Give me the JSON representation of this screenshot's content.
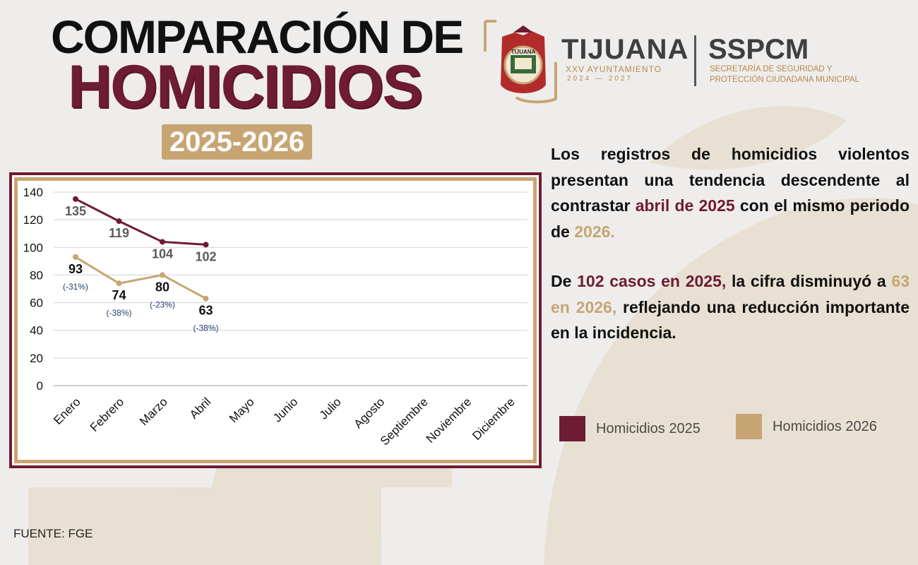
{
  "header": {
    "title_line1": "COMPARACIÓN DE",
    "title_line2": "HOMICIDIOS",
    "years_badge": "2025-2026"
  },
  "logos": {
    "tijuana_name": "TIJUANA",
    "tijuana_sub": "XXV AYUNTAMIENTO",
    "tijuana_years": "2024 — 2027",
    "seal_text": "TIJUANA",
    "sspcm_name": "SSPCM",
    "sspcm_sub": "SECRETARÍA DE SEGURIDAD Y PROTECCIÓN CIUDADANA MUNICIPAL"
  },
  "description": {
    "p1_a": "Los registros de homicidios violentos presentan una tendencia descendente al contrastar ",
    "p1_hl1": "abril de 2025",
    "p1_b": " con el mismo periodo de ",
    "p1_hl2": "2026.",
    "p2_a": "De ",
    "p2_hl1": "102 casos en 2025,",
    "p2_b": " la cifra disminuyó a ",
    "p2_hl2": "63 en 2026,",
    "p2_c": " reflejando una reducción importante en la incidencia."
  },
  "colors": {
    "series_2025": "#6e1b34",
    "series_2026": "#c7a573",
    "badge": "#c7a573",
    "pct_label": "#23406e"
  },
  "chart_data": {
    "type": "line",
    "title": "",
    "xlabel": "",
    "ylabel": "",
    "ylim": [
      0,
      140
    ],
    "yticks": [
      0,
      20,
      40,
      60,
      80,
      100,
      120,
      140
    ],
    "grid": true,
    "legend_position": "right",
    "categories": [
      "Enero",
      "Febrero",
      "Marzo",
      "Abril",
      "Mayo",
      "Junio",
      "Julio",
      "Agosto",
      "Septiembre",
      "Noviembre",
      "Diciembre"
    ],
    "series": [
      {
        "name": "Homicidios 2025",
        "values": [
          135,
          119,
          104,
          102,
          null,
          null,
          null,
          null,
          null,
          null,
          null
        ]
      },
      {
        "name": "Homicidios 2026",
        "values": [
          93,
          74,
          80,
          63,
          null,
          null,
          null,
          null,
          null,
          null,
          null
        ],
        "pct_labels": [
          "(-31%)",
          "(-38%)",
          "(-23%)",
          "(-38%)"
        ]
      }
    ]
  },
  "legend": {
    "item_2025": "Homicidios 2025",
    "item_2026": "Homicidios 2026"
  },
  "footer": {
    "source": "FUENTE: FGE"
  }
}
